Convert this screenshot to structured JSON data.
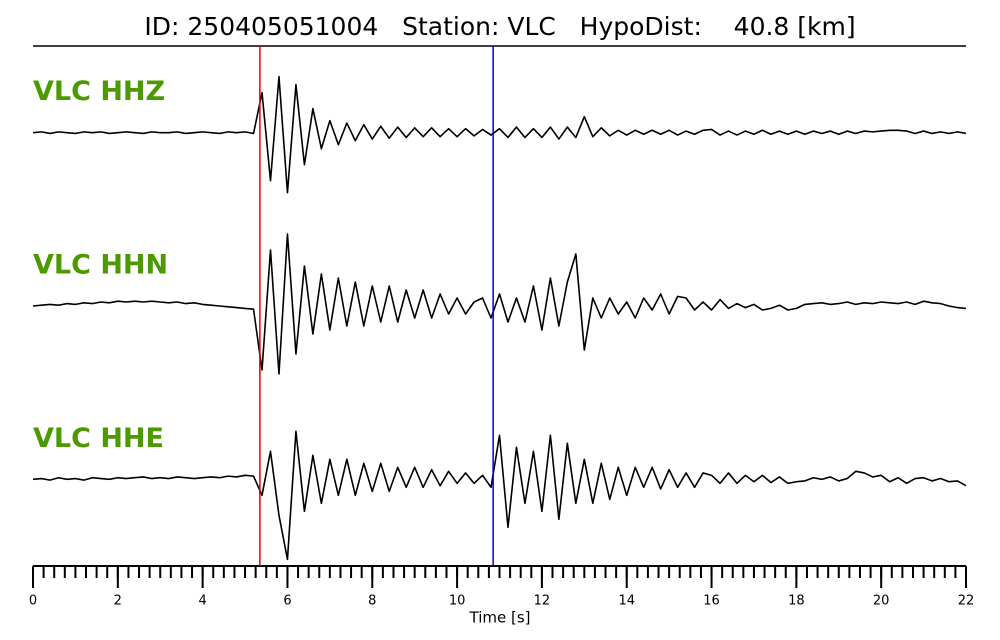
{
  "chart_data": {
    "type": "line",
    "title": "ID: 250405051004   Station: VLC   HypoDist:    40.8 [km]",
    "xlabel": "Time [s]",
    "xlim": [
      0,
      22
    ],
    "xticks": [
      0,
      2,
      4,
      6,
      8,
      10,
      12,
      14,
      16,
      18,
      20,
      22
    ],
    "xminor": [
      0,
      0.25,
      0.5,
      0.75,
      1,
      1.25,
      1.5,
      1.75,
      2,
      2.25,
      2.5,
      2.75,
      3,
      3.25,
      3.5,
      3.75,
      4,
      4.25,
      4.5,
      4.75,
      5,
      5.25,
      5.5,
      5.75,
      6,
      6.25,
      6.5,
      6.75,
      7,
      7.25,
      7.5,
      7.75,
      8,
      8.25,
      8.5,
      8.75,
      9,
      9.25,
      9.5,
      9.75,
      10,
      10.25,
      10.5,
      10.75,
      11,
      11.25,
      11.5,
      11.75,
      12,
      12.25,
      12.5,
      12.75,
      13,
      13.25,
      13.5,
      13.75,
      14,
      14.25,
      14.5,
      14.75,
      15,
      15.25,
      15.5,
      15.75,
      16,
      16.25,
      16.5,
      16.75,
      17,
      17.25,
      17.5,
      17.75,
      18,
      18.25,
      18.5,
      18.75,
      19,
      19.25,
      19.5,
      19.75,
      20,
      20.25,
      20.5,
      20.75,
      21,
      21.25,
      21.5,
      21.75,
      22
    ],
    "ylim": [
      -1,
      1
    ],
    "label_color": "#4c9a00",
    "markers": [
      {
        "x": 5.35,
        "color": "#e00000"
      },
      {
        "x": 10.85,
        "color": "#0000e0"
      }
    ],
    "x": [
      0,
      0.2,
      0.4,
      0.6,
      0.8,
      1,
      1.2,
      1.4,
      1.6,
      1.8,
      2,
      2.2,
      2.4,
      2.6,
      2.8,
      3,
      3.2,
      3.4,
      3.6,
      3.8,
      4,
      4.2,
      4.4,
      4.6,
      4.8,
      5,
      5.2,
      5.4,
      5.6,
      5.8,
      6,
      6.2,
      6.4,
      6.6,
      6.8,
      7,
      7.2,
      7.4,
      7.6,
      7.8,
      8,
      8.2,
      8.4,
      8.6,
      8.8,
      9,
      9.2,
      9.4,
      9.6,
      9.8,
      10,
      10.2,
      10.4,
      10.6,
      10.8,
      11,
      11.2,
      11.4,
      11.6,
      11.8,
      12,
      12.2,
      12.4,
      12.6,
      12.8,
      13,
      13.2,
      13.4,
      13.6,
      13.8,
      14,
      14.2,
      14.4,
      14.6,
      14.8,
      15,
      15.2,
      15.4,
      15.6,
      15.8,
      16,
      16.2,
      16.4,
      16.6,
      16.8,
      17,
      17.2,
      17.4,
      17.6,
      17.8,
      18,
      18.2,
      18.4,
      18.6,
      18.8,
      19,
      19.2,
      19.4,
      19.6,
      19.8,
      20,
      20.2,
      20.4,
      20.6,
      20.8,
      21,
      21.2,
      21.4,
      21.6,
      21.8,
      22
    ],
    "series": [
      {
        "name": "VLC HHZ",
        "color": "#000000",
        "values": [
          0,
          0.01,
          -0.01,
          0.01,
          0,
          -0.01,
          0.01,
          0,
          0.01,
          -0.01,
          0,
          0.01,
          0,
          -0.01,
          0.01,
          0,
          0,
          0.01,
          -0.01,
          0,
          0.01,
          0,
          -0.01,
          0.01,
          0,
          0.01,
          -0.01,
          0.5,
          -0.6,
          0.7,
          -0.75,
          0.6,
          -0.4,
          0.3,
          -0.2,
          0.15,
          -0.15,
          0.12,
          -0.1,
          0.1,
          -0.08,
          0.08,
          -0.07,
          0.07,
          -0.06,
          0.06,
          -0.05,
          0.06,
          -0.05,
          0.05,
          -0.05,
          0.05,
          -0.04,
          0.04,
          -0.03,
          0.05,
          -0.06,
          0.07,
          -0.06,
          0.05,
          -0.06,
          0.07,
          -0.08,
          0.07,
          -0.06,
          0.2,
          -0.05,
          0.06,
          -0.04,
          0.03,
          -0.03,
          0.03,
          -0.02,
          0.03,
          -0.02,
          0.03,
          -0.03,
          0.02,
          -0.02,
          0.03,
          0.04,
          -0.03,
          0.02,
          -0.03,
          0.02,
          -0.02,
          0.03,
          -0.02,
          0.02,
          -0.02,
          0.02,
          -0.02,
          0.02,
          -0.01,
          0.02,
          -0.02,
          0.02,
          -0.01,
          0.02,
          0.01,
          0.02,
          0.03,
          0.03,
          0.02,
          -0.01,
          0.02,
          -0.01,
          0.01,
          -0.01,
          0.01,
          -0.01
        ]
      },
      {
        "name": "VLC HHN",
        "color": "#000000",
        "values": [
          0,
          0.01,
          0.02,
          0.01,
          0.03,
          0.02,
          0.04,
          0.03,
          0.05,
          0.04,
          0.06,
          0.05,
          0.06,
          0.05,
          0.06,
          0.05,
          0.04,
          0.05,
          0.03,
          0.04,
          0.02,
          0.01,
          0,
          -0.01,
          -0.02,
          -0.03,
          -0.04,
          -0.8,
          0.7,
          -0.85,
          0.9,
          -0.6,
          0.5,
          -0.35,
          0.4,
          -0.3,
          0.35,
          -0.25,
          0.3,
          -0.25,
          0.25,
          -0.2,
          0.25,
          -0.2,
          0.2,
          -0.15,
          0.2,
          -0.15,
          0.15,
          -0.1,
          0.1,
          -0.1,
          0.05,
          0.1,
          -0.15,
          0.15,
          -0.2,
          0.1,
          -0.2,
          0.25,
          -0.3,
          0.35,
          -0.25,
          0.3,
          0.65,
          -0.55,
          0.1,
          -0.15,
          0.1,
          -0.1,
          0.05,
          -0.15,
          0.1,
          -0.05,
          0.15,
          -0.1,
          0.12,
          0.1,
          -0.05,
          0.05,
          -0.05,
          0.08,
          -0.03,
          0.03,
          -0.02,
          0.02,
          -0.05,
          -0.03,
          0.01,
          -0.05,
          -0.03,
          0.02,
          0.03,
          0.04,
          0.02,
          0.03,
          0.05,
          0.02,
          0.04,
          0.03,
          0.05,
          0.04,
          0.03,
          0.05,
          0.02,
          0.06,
          0.04,
          0.03,
          0,
          -0.02,
          -0.03
        ]
      },
      {
        "name": "VLC HHE",
        "color": "#000000",
        "values": [
          0,
          0.01,
          -0.01,
          0.02,
          0,
          0.01,
          -0.01,
          0.02,
          0.01,
          0,
          0.02,
          0.01,
          0.02,
          0.03,
          0.01,
          0.02,
          0.01,
          0.03,
          0.02,
          0.01,
          0.02,
          0.03,
          0.02,
          0.04,
          0.03,
          0.05,
          0.04,
          -0.2,
          0.35,
          -0.45,
          -1,
          0.6,
          -0.4,
          0.3,
          -0.3,
          0.25,
          -0.2,
          0.25,
          -0.2,
          0.2,
          -0.15,
          0.2,
          -0.15,
          0.15,
          -0.1,
          0.15,
          -0.1,
          0.12,
          -0.08,
          0.1,
          -0.05,
          0.08,
          -0.05,
          0.05,
          -0.1,
          0.55,
          -0.6,
          0.4,
          -0.3,
          0.35,
          -0.4,
          0.55,
          -0.5,
          0.45,
          -0.3,
          0.25,
          -0.3,
          0.2,
          -0.25,
          0.15,
          -0.2,
          0.15,
          -0.1,
          0.15,
          -0.12,
          0.12,
          -0.1,
          0.08,
          -0.1,
          0.08,
          0.05,
          -0.05,
          0.08,
          -0.05,
          0.05,
          -0.03,
          0.05,
          -0.04,
          0.03,
          -0.05,
          -0.03,
          -0.02,
          0.02,
          0,
          0.03,
          -0.02,
          0.01,
          0.1,
          0.08,
          0.03,
          0.05,
          -0.03,
          0.02,
          -0.05,
          0.01,
          0.02,
          -0.02,
          0.01,
          -0.03,
          -0.02,
          -0.08
        ]
      }
    ]
  }
}
